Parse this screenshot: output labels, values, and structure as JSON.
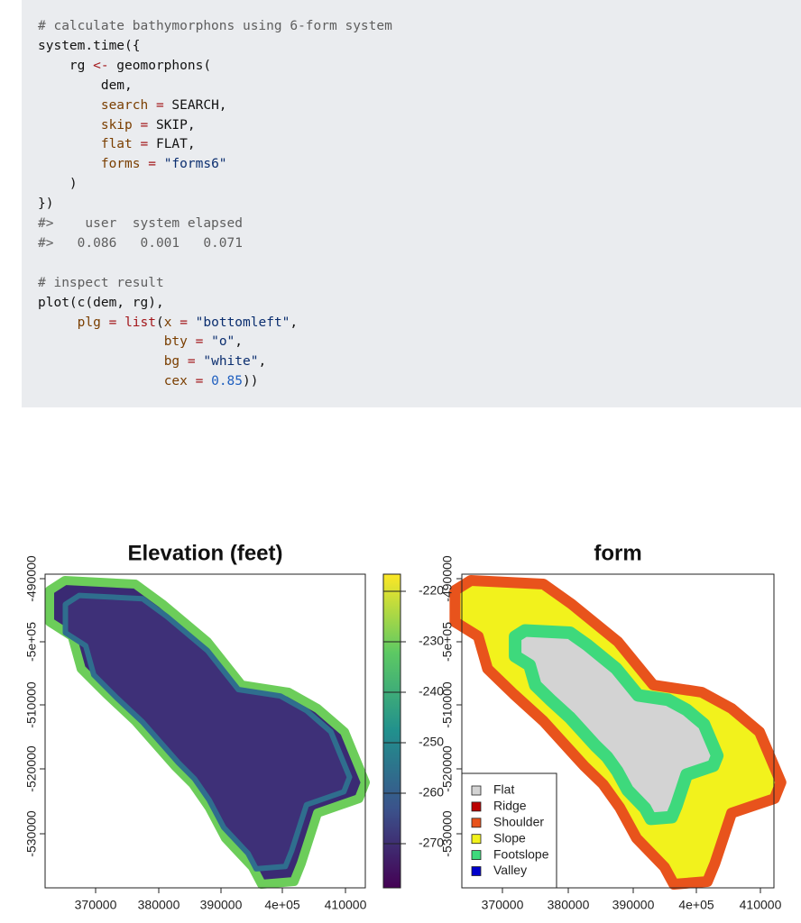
{
  "code": {
    "lines": [
      "# calculate bathymorphons using 6-form system",
      "system.time({",
      "    rg <- geomorphons(",
      "        dem,",
      "        search = SEARCH,",
      "        skip = SKIP,",
      "        flat = FLAT,",
      "        forms = \"forms6\"",
      "    )",
      "})",
      "#>    user  system elapsed",
      "#>   0.086   0.001   0.071",
      "",
      "# inspect result",
      "plot(c(dem, rg),",
      "     plg = list(x = \"bottomleft\",",
      "                bty = \"o\",",
      "                bg = \"white\",",
      "                cex = 0.85))"
    ]
  },
  "figure": {
    "left": {
      "title": "Elevation (feet)",
      "xticks": [
        "370000",
        "380000",
        "390000",
        "4e+05",
        "410000"
      ],
      "yticks": [
        "-490000",
        "-5e+05",
        "-510000",
        "-520000",
        "-530000"
      ],
      "colorbar_ticks": [
        "-220",
        "-230",
        "-240",
        "-250",
        "-260",
        "-270"
      ]
    },
    "right": {
      "title": "form",
      "xticks": [
        "370000",
        "380000",
        "390000",
        "4e+05",
        "410000"
      ],
      "yticks": [
        "-490000",
        "-5e+05",
        "-510000",
        "-520000",
        "-530000"
      ],
      "legend": [
        {
          "label": "Flat",
          "color": "#d3d3d3"
        },
        {
          "label": "Ridge",
          "color": "#bb0000"
        },
        {
          "label": "Shoulder",
          "color": "#e8531c"
        },
        {
          "label": "Slope",
          "color": "#f2f21c"
        },
        {
          "label": "Footslope",
          "color": "#3ed97c"
        },
        {
          "label": "Valley",
          "color": "#0000cc"
        }
      ]
    }
  }
}
